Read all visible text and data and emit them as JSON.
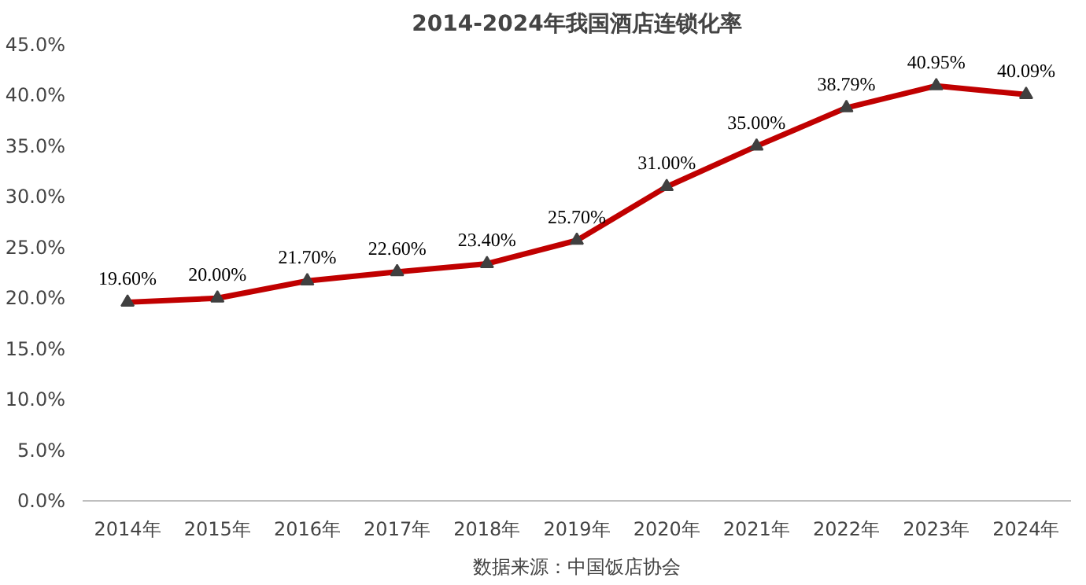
{
  "chart_data": {
    "type": "line",
    "title": "2014-2024年我国酒店连锁化率",
    "categories": [
      "2014年",
      "2015年",
      "2016年",
      "2017年",
      "2018年",
      "2019年",
      "2020年",
      "2021年",
      "2022年",
      "2023年",
      "2024年"
    ],
    "series": [
      {
        "color": "#c00000",
        "values": [
          19.6,
          20.0,
          21.7,
          22.6,
          23.4,
          25.7,
          31.0,
          35.0,
          38.79,
          40.95,
          40.09
        ],
        "value_labels": [
          "19.60%",
          "20.00%",
          "21.70%",
          "22.60%",
          "23.40%",
          "25.70%",
          "31.00%",
          "35.00%",
          "38.79%",
          "40.95%",
          "40.09%"
        ]
      }
    ],
    "ylim": [
      0,
      45
    ],
    "yticks": [
      {
        "value": 0,
        "label": "0.0%"
      },
      {
        "value": 5,
        "label": "5.0%"
      },
      {
        "value": 10,
        "label": "10.0%"
      },
      {
        "value": 15,
        "label": "15.0%"
      },
      {
        "value": 20,
        "label": "20.0%"
      },
      {
        "value": 25,
        "label": "25.0%"
      },
      {
        "value": 30,
        "label": "30.0%"
      },
      {
        "value": 35,
        "label": "35.0%"
      },
      {
        "value": 40,
        "label": "40.0%"
      },
      {
        "value": 45,
        "label": "45.0%"
      }
    ],
    "marker": "triangle",
    "line_style": "solid",
    "grid": false,
    "annotations": [
      "数据来源：中国饭店协会"
    ]
  }
}
